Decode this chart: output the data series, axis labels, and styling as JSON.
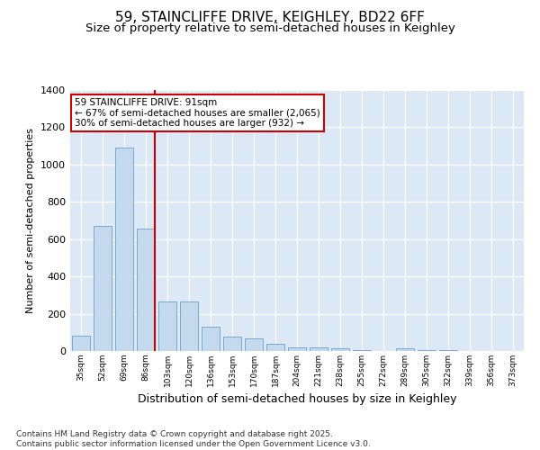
{
  "title1": "59, STAINCLIFFE DRIVE, KEIGHLEY, BD22 6FF",
  "title2": "Size of property relative to semi-detached houses in Keighley",
  "xlabel": "Distribution of semi-detached houses by size in Keighley",
  "ylabel": "Number of semi-detached properties",
  "categories": [
    "35sqm",
    "52sqm",
    "69sqm",
    "86sqm",
    "103sqm",
    "120sqm",
    "136sqm",
    "153sqm",
    "170sqm",
    "187sqm",
    "204sqm",
    "221sqm",
    "238sqm",
    "255sqm",
    "272sqm",
    "289sqm",
    "305sqm",
    "322sqm",
    "339sqm",
    "356sqm",
    "373sqm"
  ],
  "values": [
    80,
    670,
    1090,
    655,
    265,
    265,
    130,
    75,
    70,
    40,
    20,
    20,
    15,
    7,
    2,
    15,
    5,
    3,
    2,
    1,
    1
  ],
  "bar_color": "#c5d9ee",
  "bar_edge_color": "#7ba7cc",
  "highlight_bar_index": 3,
  "highlight_line_color": "#cc0000",
  "annotation_text": "59 STAINCLIFFE DRIVE: 91sqm\n← 67% of semi-detached houses are smaller (2,065)\n30% of semi-detached houses are larger (932) →",
  "annotation_box_facecolor": "#ffffff",
  "annotation_box_edgecolor": "#cc0000",
  "footer_text": "Contains HM Land Registry data © Crown copyright and database right 2025.\nContains public sector information licensed under the Open Government Licence v3.0.",
  "ylim": [
    0,
    1400
  ],
  "yticks": [
    0,
    200,
    400,
    600,
    800,
    1000,
    1200,
    1400
  ],
  "fig_bg_color": "#ffffff",
  "plot_bg_color": "#dce8f5",
  "grid_color": "#ffffff",
  "title_fontsize": 11,
  "subtitle_fontsize": 9.5,
  "xlabel_fontsize": 9,
  "ylabel_fontsize": 8
}
